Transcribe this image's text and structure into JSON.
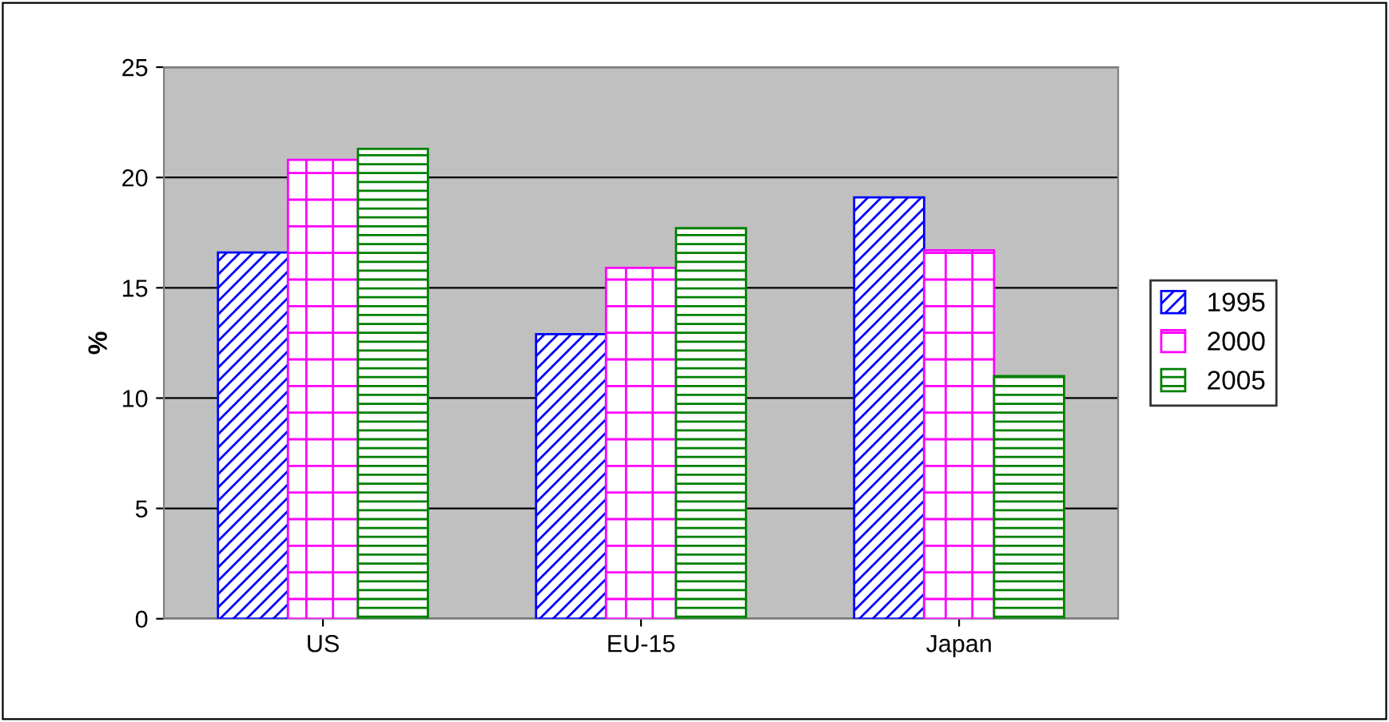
{
  "chart_data": {
    "type": "bar",
    "ylabel": "%",
    "categories": [
      "US",
      "EU-15",
      "Japan"
    ],
    "series": [
      {
        "name": "1995",
        "color": "#0000ff",
        "values": [
          16.6,
          12.9,
          19.1
        ]
      },
      {
        "name": "2000",
        "color": "#ff00ff",
        "values": [
          20.8,
          15.9,
          16.7
        ]
      },
      {
        "name": "2005",
        "color": "#008000",
        "values": [
          21.3,
          17.7,
          11.0
        ]
      }
    ],
    "ylim": [
      0,
      25
    ],
    "yticks": [
      0,
      5,
      10,
      15,
      20,
      25
    ],
    "grid": "y",
    "legend": "right"
  }
}
